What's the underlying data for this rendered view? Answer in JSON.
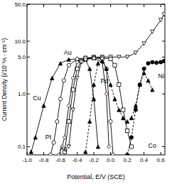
{
  "chart_data": {
    "type": "line",
    "x_label": "Potential, E/V (SCE)",
    "y_label": "Current Density (i/10⁻³A · cm⁻²)",
    "log": "y",
    "xlim": [
      -1.0,
      0.65
    ],
    "ylim": [
      0.07,
      50
    ],
    "xticks": [
      {
        "value": -1.0,
        "label": "-1.0"
      },
      -0.8,
      -0.6,
      -0.4,
      -0.2,
      {
        "value": 0,
        "label": "0.0"
      },
      0.2,
      0.4,
      0.6
    ],
    "yticks": [
      0.1,
      {
        "value": 1,
        "label": "1.0"
      },
      {
        "value": 5,
        "label": "5.0"
      },
      {
        "value": 10,
        "label": "10.0"
      },
      {
        "value": 50,
        "label": "50.0"
      }
    ],
    "series": [
      {
        "name": "Au",
        "color": "#000000",
        "marker": "triangle-down-open",
        "line_style": "solid",
        "x": [
          -0.5,
          -0.45,
          -0.4,
          -0.35,
          -0.3,
          -0.2,
          -0.1,
          0.0,
          0.1,
          0.2,
          0.3,
          0.4,
          0.5,
          0.6,
          0.64
        ],
        "values": [
          0.1,
          0.5,
          2,
          4,
          4.8,
          5,
          5,
          5,
          5,
          5,
          6,
          9,
          15,
          25,
          32
        ]
      },
      {
        "name": "Pd",
        "color": "#000000",
        "marker": "square-open",
        "line_style": "solid",
        "x": [
          -0.55,
          -0.5,
          -0.45,
          -0.4,
          -0.35,
          -0.3,
          -0.2,
          -0.1,
          0.0,
          0.05,
          0.1,
          0.15,
          0.2,
          0.25
        ],
        "values": [
          0.08,
          0.3,
          1.2,
          3,
          4.2,
          4.6,
          4.8,
          4.8,
          4.6,
          3.5,
          1.5,
          0.5,
          0.2,
          0.1
        ]
      },
      {
        "name": "Cu",
        "color": "#000000",
        "marker": "triangle",
        "line_style": "solid",
        "x": [
          -0.95,
          -0.9,
          -0.8,
          -0.7,
          -0.6,
          -0.5,
          -0.4,
          -0.3,
          -0.25,
          -0.2,
          -0.15
        ],
        "values": [
          0.08,
          0.15,
          0.6,
          2,
          3.8,
          4.5,
          4.6,
          4.5,
          3,
          0.8,
          0.1
        ]
      },
      {
        "name": "Pt",
        "color": "#000000",
        "marker": "circle-open",
        "line_style": "solid",
        "x": [
          -0.72,
          -0.68,
          -0.64,
          -0.6,
          -0.56,
          -0.5,
          -0.4,
          -0.3,
          -0.2,
          -0.1,
          -0.05,
          0.0,
          0.03
        ],
        "values": [
          0.07,
          0.12,
          0.3,
          0.8,
          1.8,
          3.5,
          4.6,
          4.8,
          4.8,
          4.6,
          3,
          0.3,
          0.07
        ]
      },
      {
        "name": "Ag",
        "color": "#000000",
        "marker": "diamond-open",
        "line_style": "solid",
        "x": [
          -0.62,
          -0.58,
          -0.55,
          -0.5,
          -0.45,
          -0.4,
          -0.3,
          -0.2,
          -0.1,
          -0.05,
          -0.02
        ],
        "values": [
          0.07,
          0.1,
          0.15,
          0.6,
          2,
          4,
          4.5,
          4.7,
          4,
          1,
          0.1
        ]
      },
      {
        "name": "Co",
        "color": "#000000",
        "marker": "triangle",
        "line_style": "dashed",
        "x": [
          -0.3,
          -0.25,
          -0.2,
          -0.15,
          -0.1,
          -0.05,
          0.0,
          0.05,
          0.1,
          0.15,
          0.2,
          0.25,
          0.3,
          0.35,
          0.4,
          0.45,
          0.5
        ],
        "values": [
          0.08,
          0.3,
          1.5,
          3.8,
          4.2,
          3,
          1.5,
          0.8,
          0.5,
          0.35,
          0.3,
          0.35,
          0.6,
          1.5,
          2.5,
          1.8,
          1.2
        ]
      },
      {
        "name": "Ni",
        "color": "#000000",
        "marker": "circle",
        "line_style": "dashed",
        "x": [
          0.2,
          0.25,
          0.3,
          0.35,
          0.4,
          0.45,
          0.5,
          0.55,
          0.6,
          0.64
        ],
        "values": [
          0.07,
          0.15,
          0.5,
          1.5,
          3,
          3.8,
          4,
          3.9,
          4,
          4.2
        ]
      }
    ]
  }
}
